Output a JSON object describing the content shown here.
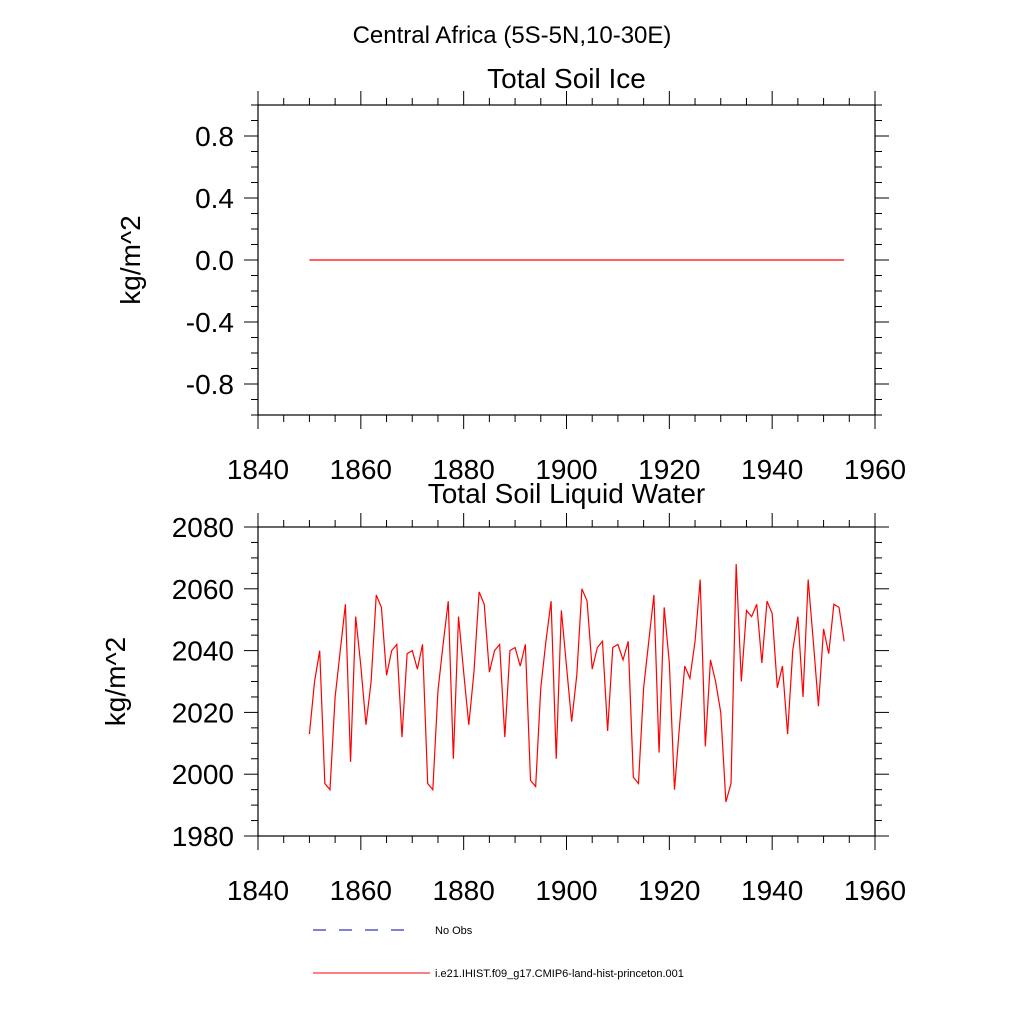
{
  "page_title": "Central Africa (5S-5N,10-30E)",
  "colors": {
    "series": "#ff0000",
    "obs": "#0000aa",
    "axis": "#000000"
  },
  "legend": {
    "entries": [
      {
        "label": "No Obs",
        "style": "dashed",
        "color": "#0000aa"
      },
      {
        "label": "i.e21.IHIST.f09_g17.CMIP6-land-hist-princeton.001",
        "style": "solid",
        "color": "#ff0000"
      }
    ]
  },
  "chart_data": [
    {
      "type": "line",
      "title": "Total Soil Ice",
      "ylabel": "kg/m^2",
      "xlim": [
        1840,
        1960
      ],
      "ylim": [
        -1.0,
        1.0
      ],
      "xticks": [
        1840,
        1860,
        1880,
        1900,
        1920,
        1940,
        1960
      ],
      "xtick_labels": [
        "1840",
        "1860",
        "1880",
        "1900",
        "1920",
        "1940",
        "1960"
      ],
      "yticks": [
        -0.8,
        -0.4,
        0.0,
        0.4,
        0.8
      ],
      "ytick_labels": [
        "-0.8",
        "-0.4",
        "0.0",
        "0.4",
        "0.8"
      ],
      "series": [
        {
          "name": "i.e21.IHIST.f09_g17.CMIP6-land-hist-princeton.001",
          "color": "#ff0000",
          "x": [
            1850,
            1954
          ],
          "y": [
            0,
            0
          ]
        }
      ]
    },
    {
      "type": "line",
      "title": "Total Soil Liquid Water",
      "ylabel": "kg/m^2",
      "xlim": [
        1840,
        1960
      ],
      "ylim": [
        1980,
        2080
      ],
      "xticks": [
        1840,
        1860,
        1880,
        1900,
        1920,
        1940,
        1960
      ],
      "xtick_labels": [
        "1840",
        "1860",
        "1880",
        "1900",
        "1920",
        "1940",
        "1960"
      ],
      "yticks": [
        1980,
        2000,
        2020,
        2040,
        2060,
        2080
      ],
      "ytick_labels": [
        "1980",
        "2000",
        "2020",
        "2040",
        "2060",
        "2080"
      ],
      "series": [
        {
          "name": "i.e21.IHIST.f09_g17.CMIP6-land-hist-princeton.001",
          "color": "#ff0000",
          "x_start": 1850,
          "x_step": 1,
          "y": [
            2013,
            2030,
            2040,
            1997,
            1995,
            2025,
            2040,
            2055,
            2004,
            2051,
            2035,
            2016,
            2030,
            2058,
            2054,
            2032,
            2040,
            2042,
            2012,
            2039,
            2040,
            2034,
            2042,
            1997,
            1995,
            2027,
            2042,
            2056,
            2005,
            2051,
            2033,
            2016,
            2033,
            2059,
            2055,
            2033,
            2040,
            2042,
            2012,
            2040,
            2041,
            2035,
            2042,
            1998,
            1996,
            2028,
            2043,
            2056,
            2005,
            2053,
            2035,
            2017,
            2032,
            2060,
            2056,
            2034,
            2041,
            2043,
            2014,
            2041,
            2042,
            2037,
            2043,
            1999,
            1997,
            2028,
            2043,
            2058,
            2007,
            2054,
            2036,
            1995,
            2016,
            2035,
            2031,
            2043,
            2063,
            2009,
            2037,
            2030,
            2020,
            1991,
            1997,
            2068,
            2030,
            2053,
            2051,
            2055,
            2036,
            2056,
            2052,
            2028,
            2035,
            2013,
            2040,
            2051,
            2025,
            2063,
            2043,
            2022,
            2047,
            2039,
            2055,
            2054,
            2043
          ]
        }
      ]
    }
  ]
}
